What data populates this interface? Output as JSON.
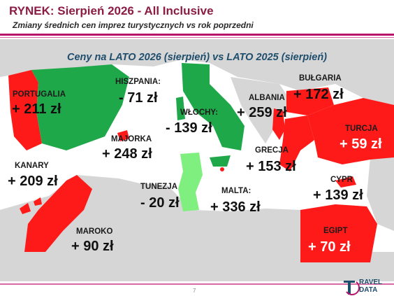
{
  "header": {
    "title": "RYNEK: Sierpień 2026 - All Inclusive",
    "subtitle": "Zmiany średnich cen imprez turystycznych vs rok poprzedni"
  },
  "colors": {
    "accent": "#b8146a",
    "increase": "#ff1a1a",
    "decrease": "#1fa84a",
    "decrease_light": "#7ff07f",
    "land_other": "#d6d6d6"
  },
  "chart_data": {
    "type": "map",
    "title": "Ceny na LATO 2026 (sierpień) vs  LATO 2025 (sierpień)",
    "unit": "zł",
    "regions": [
      {
        "id": "portugalia",
        "label": "PORTUGALIA",
        "value": 211,
        "text": "+ 211 zł"
      },
      {
        "id": "hiszpania",
        "label": "HISZPANIA:",
        "value": -71,
        "text": "- 71 zł"
      },
      {
        "id": "wlochy",
        "label": "WŁOCHY:",
        "value": -139,
        "text": "- 139 zł"
      },
      {
        "id": "albania",
        "label": "ALBANIA",
        "value": 259,
        "text": "+ 259 zł"
      },
      {
        "id": "bulgaria",
        "label": "BUŁGARIA",
        "value": 172,
        "text": "+ 172 zł"
      },
      {
        "id": "turcja",
        "label": "TURCJA",
        "value": 59,
        "text": "+ 59 zł"
      },
      {
        "id": "majorka",
        "label": "MAJORKA",
        "value": 248,
        "text": "+ 248 zł"
      },
      {
        "id": "grecja",
        "label": "GRECJA",
        "value": 153,
        "text": "+ 153 zł"
      },
      {
        "id": "kanary",
        "label": "KANARY",
        "value": 209,
        "text": "+ 209 zł"
      },
      {
        "id": "tunezja",
        "label": "TUNEZJA",
        "value": -20,
        "text": "- 20 zł"
      },
      {
        "id": "malta",
        "label": "MALTA:",
        "value": 336,
        "text": "+ 336 zł"
      },
      {
        "id": "cypr",
        "label": "CYPR",
        "value": 139,
        "text": "+ 139 zł"
      },
      {
        "id": "maroko",
        "label": "MAROKO",
        "value": 90,
        "text": "+ 90 zł"
      },
      {
        "id": "egipt",
        "label": "EGIPT",
        "value": 70,
        "text": "+ 70 zł"
      }
    ]
  },
  "footer": {
    "page_number": "7",
    "logo_line1": "RAVEL",
    "logo_line2": "DATA"
  }
}
